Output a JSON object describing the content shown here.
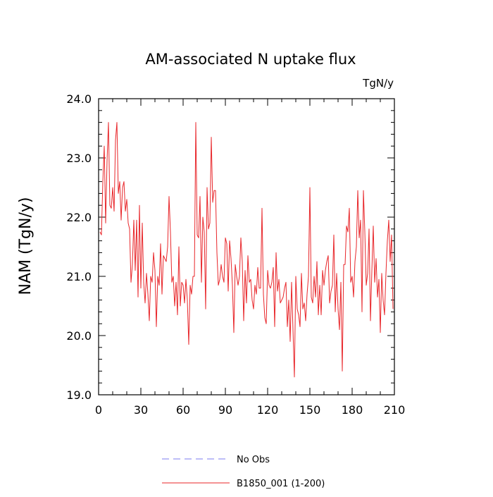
{
  "chart_data": {
    "type": "line",
    "title": "AM-associated N uptake flux",
    "units_label": "TgN/y",
    "ylabel": "NAM  (TgN/y)",
    "xlabel": "",
    "xlim": [
      0,
      210
    ],
    "ylim": [
      19.0,
      24.0
    ],
    "x_ticks": [
      0,
      30,
      60,
      90,
      120,
      150,
      180,
      210
    ],
    "x_tick_labels": [
      "0",
      "30",
      "60",
      "90",
      "120",
      "150",
      "180",
      "210"
    ],
    "y_ticks": [
      19.0,
      20.0,
      21.0,
      22.0,
      23.0,
      24.0
    ],
    "y_tick_labels": [
      "19.0",
      "20.0",
      "21.0",
      "22.0",
      "23.0",
      "24.0"
    ],
    "grid": false,
    "legend_position": "bottom-center",
    "series": [
      {
        "name": "B1850_001 (1-200)",
        "color": "#e8262a",
        "style": "solid",
        "x_start": 1,
        "values": [
          21.75,
          21.7,
          22.6,
          23.2,
          21.9,
          22.95,
          23.6,
          22.2,
          22.15,
          22.5,
          22.1,
          23.3,
          23.6,
          22.4,
          22.6,
          21.95,
          22.5,
          22.6,
          22.1,
          22.3,
          21.9,
          21.8,
          20.9,
          21.2,
          21.95,
          21.1,
          21.95,
          20.65,
          22.2,
          20.8,
          21.9,
          20.9,
          20.55,
          21.05,
          20.7,
          20.25,
          21.0,
          20.9,
          21.4,
          21.1,
          20.15,
          21.0,
          20.85,
          21.55,
          20.7,
          21.35,
          21.3,
          21.25,
          21.5,
          22.35,
          21.75,
          20.9,
          21.0,
          20.5,
          20.9,
          20.35,
          21.5,
          20.5,
          20.9,
          20.85,
          20.55,
          20.95,
          20.6,
          19.85,
          20.85,
          20.7,
          21.0,
          21.0,
          23.6,
          21.7,
          21.65,
          22.35,
          20.9,
          22.0,
          21.75,
          20.45,
          22.5,
          21.8,
          21.9,
          23.35,
          22.25,
          22.45,
          22.45,
          21.4,
          20.85,
          20.95,
          21.2,
          21.0,
          20.9,
          21.65,
          21.55,
          20.75,
          21.6,
          21.3,
          20.85,
          20.05,
          21.2,
          21.0,
          20.85,
          21.0,
          21.65,
          21.25,
          20.25,
          21.1,
          20.55,
          21.35,
          20.9,
          20.95,
          20.6,
          20.45,
          20.85,
          20.7,
          21.15,
          20.8,
          20.8,
          22.15,
          20.7,
          20.3,
          20.2,
          21.1,
          20.85,
          20.8,
          20.9,
          21.15,
          20.15,
          21.4,
          20.75,
          20.95,
          20.55,
          20.6,
          20.65,
          20.8,
          20.9,
          20.15,
          20.6,
          19.9,
          20.9,
          20.1,
          19.3,
          21.0,
          20.45,
          20.35,
          20.15,
          21.05,
          20.45,
          20.55,
          20.25,
          20.7,
          21.0,
          22.5,
          20.65,
          20.55,
          21.0,
          20.65,
          21.25,
          20.35,
          20.85,
          20.35,
          21.1,
          20.85,
          21.1,
          21.25,
          21.35,
          20.55,
          20.75,
          20.85,
          21.7,
          20.4,
          21.05,
          20.45,
          20.1,
          20.9,
          19.4,
          21.2,
          21.2,
          21.85,
          21.75,
          22.15,
          20.9,
          21.0,
          20.65,
          21.25,
          21.5,
          22.45,
          21.65,
          21.95,
          20.4,
          22.45,
          21.75,
          20.85,
          21.05,
          21.8,
          20.25,
          21.1,
          21.85,
          20.9,
          21.3,
          20.65,
          20.95,
          20.05,
          21.05,
          20.6,
          20.35,
          21.05,
          21.6,
          21.95,
          21.25,
          21.7,
          20.45
        ]
      },
      {
        "name": "No Obs",
        "color": "#7b7bf0",
        "style": "dashed",
        "values": []
      }
    ]
  }
}
